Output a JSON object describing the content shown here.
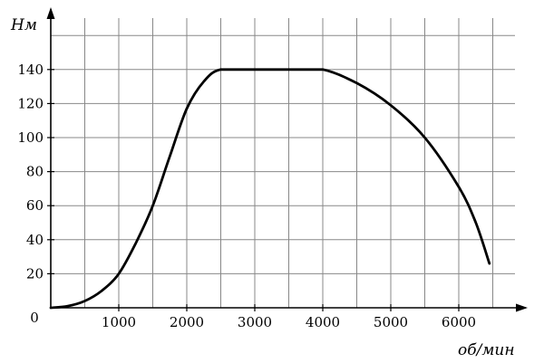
{
  "chart_data": {
    "type": "line",
    "title": "",
    "xlabel": "об/мин",
    "ylabel": "Нм",
    "origin_label": "0",
    "xlim": [
      0,
      7000
    ],
    "ylim": [
      0,
      160
    ],
    "x_ticks": [
      1000,
      2000,
      3000,
      4000,
      5000,
      6000
    ],
    "x_tick_labels": [
      "1000",
      "2000",
      "3000",
      "4000",
      "5000",
      "6000"
    ],
    "y_ticks": [
      20,
      40,
      60,
      80,
      100,
      120,
      140
    ],
    "y_tick_labels": [
      "20",
      "40",
      "60",
      "80",
      "100",
      "120",
      "140"
    ],
    "x_grid_step": 500,
    "y_grid_step": 20,
    "grid": true,
    "legend": "none",
    "series": [
      {
        "x": [
          0,
          250,
          500,
          750,
          1000,
          1250,
          1500,
          1750,
          2000,
          2250,
          2500,
          3000,
          3500,
          4000,
          4500,
          5000,
          5500,
          6000,
          6250,
          6450
        ],
        "y": [
          0,
          1,
          4,
          10,
          20,
          38,
          60,
          89,
          117,
          133,
          140,
          140,
          140,
          140,
          132,
          119,
          100,
          71,
          50,
          26
        ]
      }
    ],
    "line_color": "#000000",
    "grid_color": "#888888"
  }
}
